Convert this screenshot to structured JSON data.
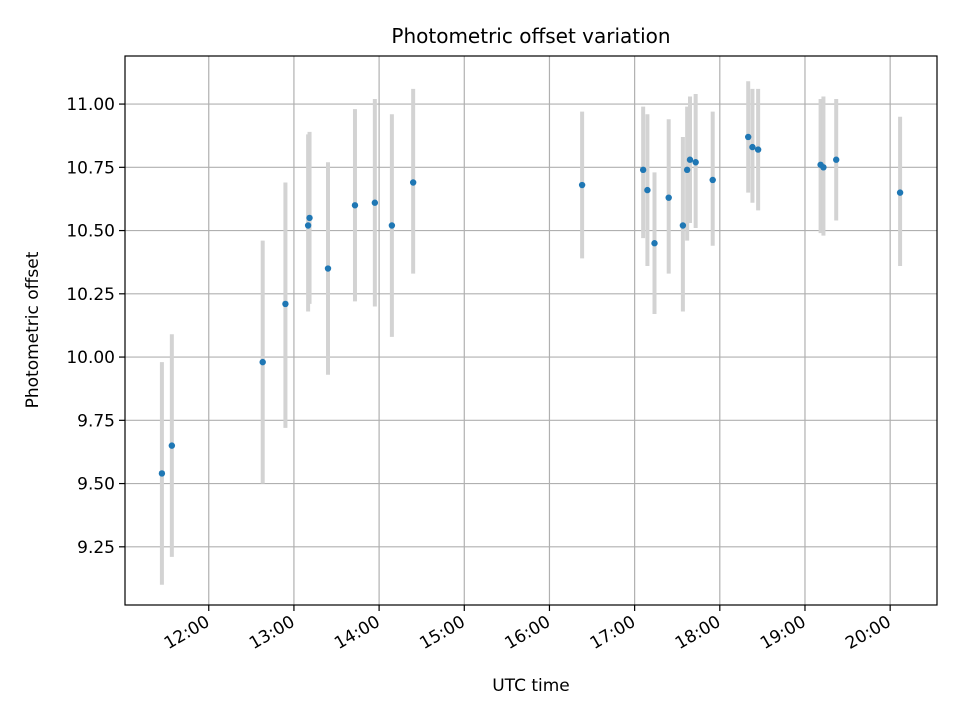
{
  "chart_data": {
    "type": "scatter",
    "title": "Photometric offset variation",
    "xlabel": "UTC time",
    "ylabel": "Photometric offset",
    "xlim": [
      "11:01",
      "20:33"
    ],
    "ylim": [
      9.02,
      11.19
    ],
    "x_ticks": [
      "12:00",
      "13:00",
      "14:00",
      "15:00",
      "16:00",
      "17:00",
      "18:00",
      "19:00",
      "20:00"
    ],
    "y_ticks": [
      9.25,
      9.5,
      9.75,
      10.0,
      10.25,
      10.5,
      10.75,
      11.0
    ],
    "grid": true,
    "colors": {
      "point": "#1f77b4",
      "errorbar": "#d3d3d3",
      "grid": "#b0b0b0"
    },
    "points": [
      {
        "x": "11:27",
        "y": 9.54,
        "err_low": 9.1,
        "err_high": 9.98
      },
      {
        "x": "11:34",
        "y": 9.65,
        "err_low": 9.21,
        "err_high": 10.09
      },
      {
        "x": "12:38",
        "y": 9.98,
        "err_low": 9.5,
        "err_high": 10.46
      },
      {
        "x": "12:54",
        "y": 10.21,
        "err_low": 9.72,
        "err_high": 10.69
      },
      {
        "x": "13:10",
        "y": 10.52,
        "err_low": 10.18,
        "err_high": 10.88
      },
      {
        "x": "13:11",
        "y": 10.55,
        "err_low": 10.21,
        "err_high": 10.89
      },
      {
        "x": "13:24",
        "y": 10.35,
        "err_low": 9.93,
        "err_high": 10.77
      },
      {
        "x": "13:43",
        "y": 10.6,
        "err_low": 10.22,
        "err_high": 10.98
      },
      {
        "x": "13:57",
        "y": 10.61,
        "err_low": 10.2,
        "err_high": 11.02
      },
      {
        "x": "14:09",
        "y": 10.52,
        "err_low": 10.08,
        "err_high": 10.96
      },
      {
        "x": "14:24",
        "y": 10.69,
        "err_low": 10.33,
        "err_high": 11.06
      },
      {
        "x": "16:23",
        "y": 10.68,
        "err_low": 10.39,
        "err_high": 10.97
      },
      {
        "x": "17:06",
        "y": 10.74,
        "err_low": 10.47,
        "err_high": 10.99
      },
      {
        "x": "17:09",
        "y": 10.66,
        "err_low": 10.36,
        "err_high": 10.96
      },
      {
        "x": "17:14",
        "y": 10.45,
        "err_low": 10.17,
        "err_high": 10.73
      },
      {
        "x": "17:24",
        "y": 10.63,
        "err_low": 10.33,
        "err_high": 10.94
      },
      {
        "x": "17:34",
        "y": 10.52,
        "err_low": 10.18,
        "err_high": 10.87
      },
      {
        "x": "17:37",
        "y": 10.74,
        "err_low": 10.46,
        "err_high": 10.99
      },
      {
        "x": "17:39",
        "y": 10.78,
        "err_low": 10.53,
        "err_high": 11.03
      },
      {
        "x": "17:43",
        "y": 10.77,
        "err_low": 10.51,
        "err_high": 11.04
      },
      {
        "x": "17:55",
        "y": 10.7,
        "err_low": 10.44,
        "err_high": 10.97
      },
      {
        "x": "18:20",
        "y": 10.87,
        "err_low": 10.65,
        "err_high": 11.09
      },
      {
        "x": "18:23",
        "y": 10.83,
        "err_low": 10.61,
        "err_high": 11.06
      },
      {
        "x": "18:27",
        "y": 10.82,
        "err_low": 10.58,
        "err_high": 11.06
      },
      {
        "x": "19:11",
        "y": 10.76,
        "err_low": 10.49,
        "err_high": 11.02
      },
      {
        "x": "19:13",
        "y": 10.75,
        "err_low": 10.48,
        "err_high": 11.03
      },
      {
        "x": "19:22",
        "y": 10.78,
        "err_low": 10.54,
        "err_high": 11.02
      },
      {
        "x": "20:07",
        "y": 10.65,
        "err_low": 10.36,
        "err_high": 10.95
      }
    ]
  }
}
